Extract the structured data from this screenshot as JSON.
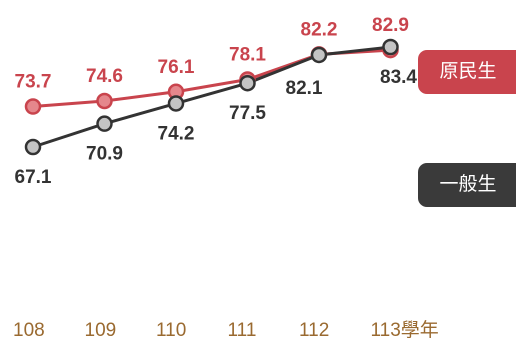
{
  "colors": {
    "indigenous_line": "#c9444d",
    "indigenous_marker": "#e5878c",
    "general_line": "#333333",
    "general_marker": "#c4c4c4",
    "axis_text": "#9a6a30",
    "tag_indigenous_bg": "#c9444d",
    "tag_general_bg": "#3a3a3a"
  },
  "legend": {
    "indigenous": "原民生",
    "general": "一般生"
  },
  "chart_data": {
    "type": "line",
    "categories": [
      "108",
      "109",
      "110",
      "111",
      "112",
      "113學年"
    ],
    "series": [
      {
        "name": "原民生",
        "values": [
          73.7,
          74.6,
          76.1,
          78.1,
          82.2,
          82.9
        ]
      },
      {
        "name": "一般生",
        "values": [
          67.1,
          70.9,
          74.2,
          77.5,
          82.1,
          83.4
        ]
      }
    ],
    "xlabel": "",
    "ylabel": "",
    "ylim": [
      60,
      90
    ],
    "grid": false,
    "legend_position": "right"
  }
}
